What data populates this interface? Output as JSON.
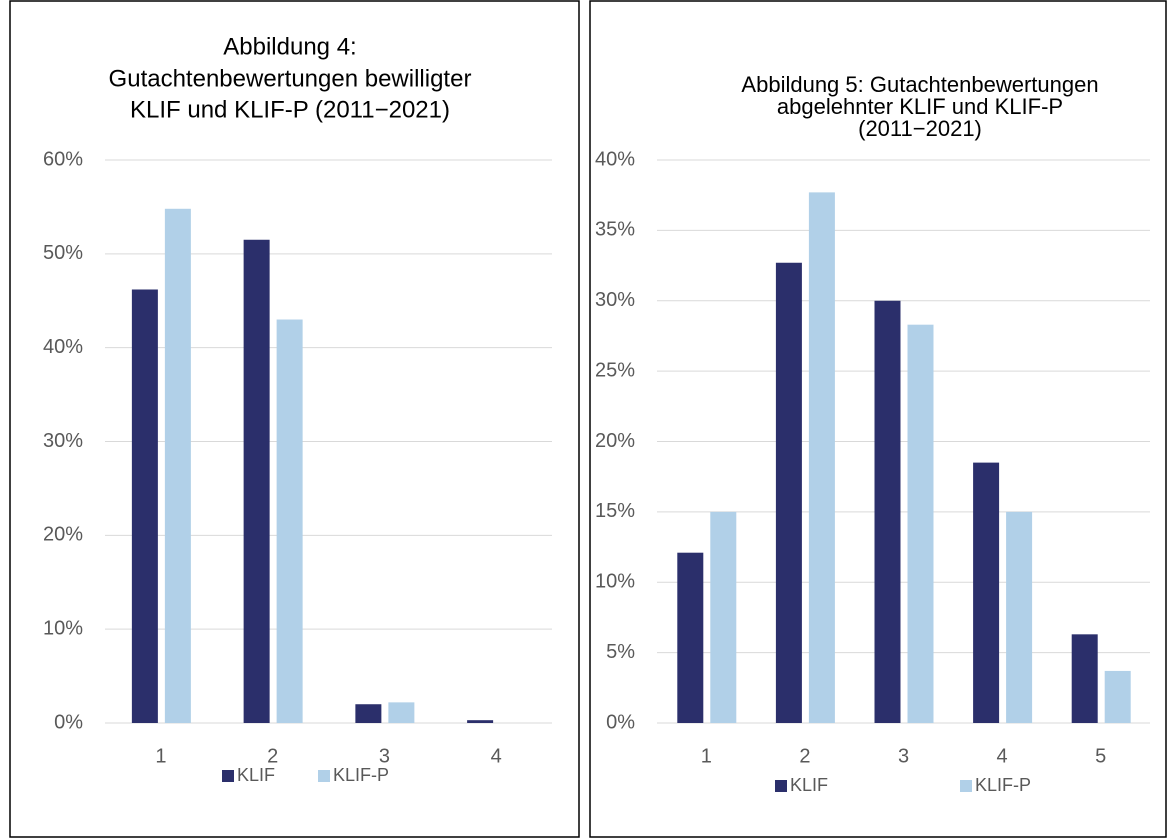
{
  "chart_data": [
    {
      "type": "bar",
      "title": [
        "Abbildung 4:",
        "Gutachtenbewertungen bewilligter",
        "KLIF und KLIF-P (2011−2021)"
      ],
      "categories": [
        "1",
        "2",
        "3",
        "4"
      ],
      "series": [
        {
          "name": "KLIF",
          "color": "#2b2f6b",
          "values": [
            46.2,
            51.5,
            2.0,
            0.3
          ]
        },
        {
          "name": "KLIF-P",
          "color": "#b1d0e8",
          "values": [
            54.8,
            43.0,
            2.2,
            0
          ]
        }
      ],
      "ylim": [
        0,
        60
      ],
      "yticks": [
        {
          "value": 0,
          "label": "0%"
        },
        {
          "value": 10,
          "label": "10%"
        },
        {
          "value": 20,
          "label": "20%"
        },
        {
          "value": 30,
          "label": "30%"
        },
        {
          "value": 40,
          "label": "40%"
        },
        {
          "value": 50,
          "label": "50%"
        },
        {
          "value": 60,
          "label": "60%"
        }
      ],
      "grid": true,
      "legend": "bottom"
    },
    {
      "type": "bar",
      "title": [
        "Abbildung 5: Gutachtenbewertungen",
        "abgelehnter KLIF und KLIF-P",
        "(2011−2021)"
      ],
      "categories": [
        "1",
        "2",
        "3",
        "4",
        "5"
      ],
      "series": [
        {
          "name": "KLIF",
          "color": "#2b2f6b",
          "values": [
            12.1,
            32.7,
            30.0,
            18.5,
            6.3
          ]
        },
        {
          "name": "KLIF-P",
          "color": "#b1d0e8",
          "values": [
            15.0,
            37.7,
            28.3,
            15.0,
            3.7
          ]
        }
      ],
      "ylim": [
        0,
        40
      ],
      "yticks": [
        {
          "value": 0,
          "label": "0%"
        },
        {
          "value": 5,
          "label": "5%"
        },
        {
          "value": 10,
          "label": "10%"
        },
        {
          "value": 15,
          "label": "15%"
        },
        {
          "value": 20,
          "label": "20%"
        },
        {
          "value": 25,
          "label": "25%"
        },
        {
          "value": 30,
          "label": "30%"
        },
        {
          "value": 35,
          "label": "35%"
        },
        {
          "value": 40,
          "label": "40%"
        }
      ],
      "grid": true,
      "legend": "bottom"
    }
  ]
}
